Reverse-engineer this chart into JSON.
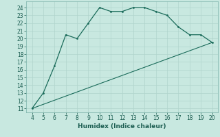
{
  "xlabel": "Humidex (Indice chaleur)",
  "curve_x": [
    4,
    5,
    6,
    7,
    8,
    9,
    10,
    11,
    12,
    13,
    14,
    15,
    16,
    17,
    18,
    19,
    20
  ],
  "curve_y": [
    11,
    13,
    16.5,
    20.5,
    20,
    22,
    24,
    23.5,
    23.5,
    24,
    24,
    23.5,
    23,
    21.5,
    20.5,
    20.5,
    19.5
  ],
  "line_x": [
    4,
    20
  ],
  "line_y": [
    11,
    19.5
  ],
  "line_color": "#1a6b5a",
  "curve_color": "#1a6b5a",
  "bg_color": "#c8e8e0",
  "grid_color": "#b0d4cc",
  "xlim": [
    3.5,
    20.5
  ],
  "ylim": [
    10.5,
    24.8
  ],
  "yticks": [
    11,
    12,
    13,
    14,
    15,
    16,
    17,
    18,
    19,
    20,
    21,
    22,
    23,
    24
  ],
  "xticks": [
    4,
    5,
    6,
    7,
    8,
    9,
    10,
    11,
    12,
    13,
    14,
    15,
    16,
    17,
    18,
    19,
    20
  ]
}
